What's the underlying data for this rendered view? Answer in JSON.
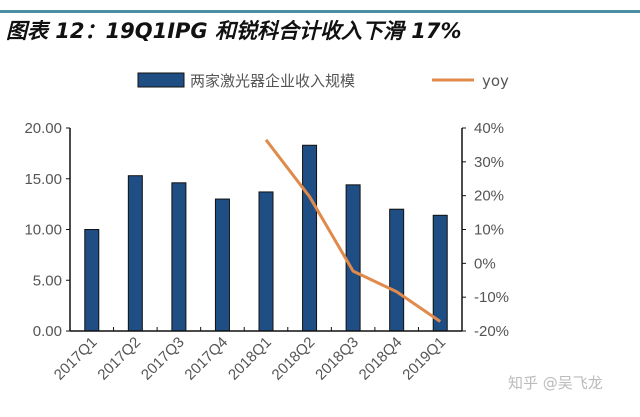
{
  "title": "图表 12：19Q1IPG 和锐科合计收入下滑 17%",
  "watermark": "知乎 @吴飞龙",
  "colors": {
    "bar": "#1f4e84",
    "line": "#e08a4c",
    "top_rule": "#4a8fa3"
  },
  "chart_data": {
    "type": "bar+line",
    "categories": [
      "2017Q1",
      "2017Q2",
      "2017Q3",
      "2017Q4",
      "2018Q1",
      "2018Q2",
      "2018Q3",
      "2018Q4",
      "2019Q1"
    ],
    "series": [
      {
        "name": "两家激光器企业收入规模",
        "type": "bar",
        "axis": "left",
        "values": [
          10.0,
          15.3,
          14.6,
          13.0,
          13.7,
          18.3,
          14.4,
          12.0,
          11.4
        ]
      },
      {
        "name": "yoy",
        "type": "line",
        "axis": "right",
        "values": [
          null,
          null,
          null,
          null,
          36.5,
          19.7,
          -2.3,
          -8.4,
          -17.2
        ]
      }
    ],
    "left_axis": {
      "ylim": [
        0,
        20
      ],
      "ticks": [
        "0.00",
        "5.00",
        "10.00",
        "15.00",
        "20.00"
      ]
    },
    "right_axis": {
      "ylim": [
        -20,
        40
      ],
      "ticks": [
        "-20%",
        "-10%",
        "0%",
        "10%",
        "20%",
        "30%",
        "40%"
      ]
    },
    "legend_position": "top",
    "grid": false
  }
}
